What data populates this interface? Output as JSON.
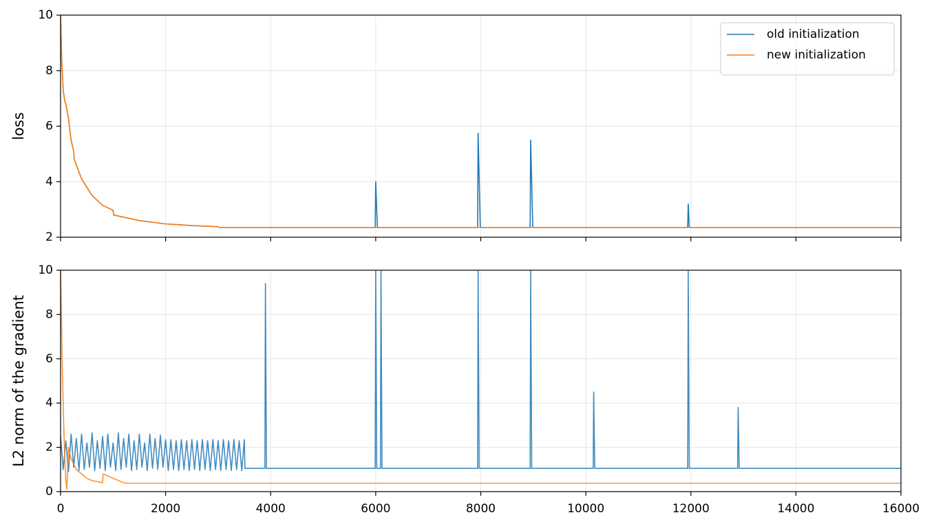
{
  "chart_data": [
    {
      "type": "line",
      "ylabel": "loss",
      "xlim": [
        0,
        16000
      ],
      "ylim": [
        2,
        10
      ],
      "xticks": [
        0,
        2000,
        4000,
        6000,
        8000,
        10000,
        12000,
        14000,
        16000
      ],
      "yticks": [
        2,
        4,
        6,
        8,
        10
      ],
      "grid": true,
      "legend": "upper right",
      "series": [
        {
          "name": "old initialization",
          "color": "#1f77b4",
          "x": [
            0,
            20,
            50,
            80,
            100,
            150,
            200,
            250,
            260,
            400,
            600,
            800,
            1000,
            1010,
            1500,
            2000,
            2500,
            3000,
            3010,
            5990,
            6000,
            6030,
            6040,
            7940,
            7950,
            7990,
            8000,
            8940,
            8950,
            8990,
            11940,
            11950,
            11970,
            16000
          ],
          "values": [
            10,
            8.5,
            7.3,
            6.9,
            6.8,
            6.3,
            5.5,
            5.1,
            4.8,
            4.1,
            3.5,
            3.15,
            2.97,
            2.8,
            2.6,
            2.48,
            2.42,
            2.38,
            2.35,
            2.35,
            4.0,
            2.4,
            2.35,
            2.35,
            5.75,
            2.4,
            2.35,
            2.35,
            5.5,
            2.35,
            2.35,
            3.2,
            2.35,
            2.35
          ]
        },
        {
          "name": "new initialization",
          "color": "#ff7f0e",
          "x": [
            0,
            20,
            50,
            80,
            100,
            150,
            200,
            250,
            260,
            400,
            600,
            800,
            1000,
            1010,
            1500,
            2000,
            2500,
            3000,
            3010,
            16000
          ],
          "values": [
            10,
            8.5,
            7.3,
            6.9,
            6.8,
            6.3,
            5.5,
            5.1,
            4.8,
            4.1,
            3.5,
            3.15,
            2.97,
            2.8,
            2.6,
            2.48,
            2.42,
            2.38,
            2.35,
            2.35
          ]
        }
      ]
    },
    {
      "type": "line",
      "ylabel": "L2 norm of the gradient",
      "xlim": [
        0,
        16000
      ],
      "ylim": [
        0,
        10
      ],
      "xticks": [
        0,
        2000,
        4000,
        6000,
        8000,
        10000,
        12000,
        14000,
        16000
      ],
      "yticks": [
        0,
        2,
        4,
        6,
        8,
        10
      ],
      "grid": true,
      "series": [
        {
          "color": "#1f77b4",
          "x": [
            0,
            50,
            100,
            150,
            200,
            250,
            300,
            350,
            400,
            450,
            500,
            550,
            600,
            650,
            700,
            750,
            800,
            850,
            900,
            950,
            1000,
            1050,
            1100,
            1150,
            1200,
            1250,
            1300,
            1350,
            1400,
            1450,
            1500,
            1550,
            1600,
            1650,
            1700,
            1750,
            1800,
            1850,
            1900,
            1950,
            2000,
            2050,
            2100,
            2150,
            2200,
            2250,
            2300,
            2350,
            2400,
            2450,
            2500,
            2550,
            2600,
            2650,
            2700,
            2750,
            2800,
            2850,
            2900,
            2950,
            3000,
            3050,
            3100,
            3150,
            3200,
            3250,
            3300,
            3350,
            3400,
            3450,
            3500,
            3510,
            3890,
            3900,
            3920,
            5990,
            6000,
            6020,
            6090,
            6100,
            6120,
            7940,
            7950,
            7970,
            8940,
            8950,
            8970,
            10140,
            10150,
            10170,
            11940,
            11950,
            11970,
            12890,
            12900,
            12920,
            16000
          ],
          "values": [
            2.5,
            1.0,
            2.3,
            0.9,
            2.6,
            1.1,
            2.4,
            0.95,
            2.6,
            1.0,
            2.2,
            1.1,
            2.65,
            0.95,
            2.3,
            1.05,
            2.5,
            0.95,
            2.6,
            1.1,
            2.2,
            0.95,
            2.65,
            1.0,
            2.4,
            1.1,
            2.6,
            0.95,
            2.3,
            1.0,
            2.6,
            1.1,
            2.2,
            0.95,
            2.6,
            1.05,
            2.4,
            1.0,
            2.55,
            1.1,
            2.35,
            0.95,
            2.35,
            1.0,
            2.3,
            0.95,
            2.35,
            1.0,
            2.3,
            0.95,
            2.35,
            1.0,
            2.3,
            0.95,
            2.35,
            1.0,
            2.3,
            0.95,
            2.35,
            1.0,
            2.3,
            0.95,
            2.35,
            1.0,
            2.3,
            0.95,
            2.35,
            1.0,
            2.3,
            0.95,
            2.35,
            1.05,
            1.05,
            9.4,
            1.05,
            1.05,
            10,
            1.05,
            1.05,
            10,
            1.05,
            1.05,
            10,
            1.05,
            1.05,
            10,
            1.05,
            1.05,
            4.5,
            1.05,
            1.05,
            10,
            1.05,
            1.05,
            3.8,
            1.05,
            1.05
          ]
        },
        {
          "color": "#ff7f0e",
          "x": [
            0,
            30,
            60,
            80,
            100,
            120,
            150,
            200,
            300,
            400,
            500,
            600,
            800,
            810,
            1000,
            1200,
            1250,
            16000
          ],
          "values": [
            10,
            6,
            3,
            1.5,
            0.5,
            0.1,
            2.0,
            1.5,
            1.0,
            0.8,
            0.6,
            0.5,
            0.4,
            0.8,
            0.6,
            0.4,
            0.38,
            0.38
          ]
        }
      ]
    }
  ]
}
